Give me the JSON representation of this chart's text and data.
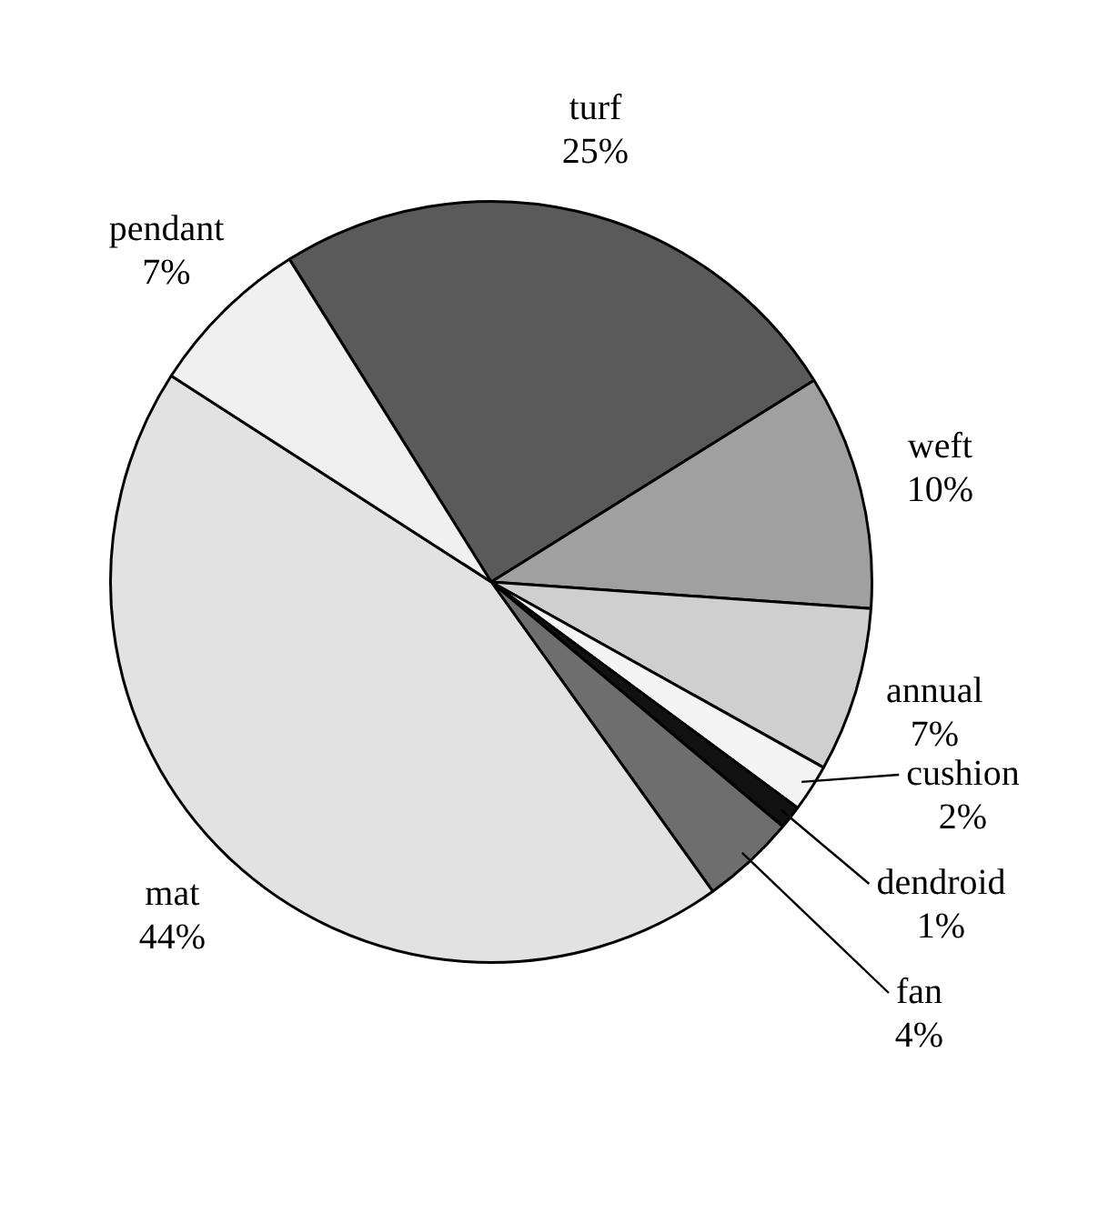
{
  "chart_data": {
    "type": "pie",
    "categories": [
      "turf",
      "weft",
      "annual",
      "cushion",
      "dendroid",
      "fan",
      "mat",
      "pendant"
    ],
    "values": [
      25,
      10,
      7,
      2,
      1,
      4,
      44,
      7
    ],
    "value_labels": [
      "25%",
      "10%",
      "7%",
      "2%",
      "1%",
      "4%",
      "44%",
      "7%"
    ],
    "colors": [
      "#5a5a5a",
      "#a0a0a0",
      "#cfcfcf",
      "#f4f4f4",
      "#111111",
      "#6e6e6e",
      "#e2e2e2",
      "#f0f0f0"
    ],
    "legend": false
  }
}
